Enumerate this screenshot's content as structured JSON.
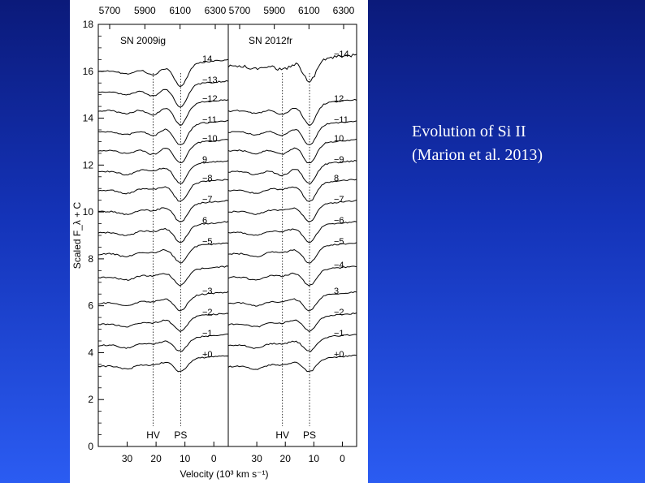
{
  "caption": {
    "line1": "Evolution of Si II",
    "line2": "(Marion et al. 2013)"
  },
  "colors": {
    "background_top": "#0b1a7a",
    "background_bottom": "#2b5cf2",
    "caption_text": "#ffffff",
    "figure_bg": "#ffffff",
    "ink": "#000000"
  },
  "chart_data": {
    "type": "line",
    "ylabel": "Scaled F_λ + C",
    "xlabel": "Velocity (10³ km s⁻¹)",
    "ylim": [
      0,
      18
    ],
    "yticks": [
      0,
      2,
      4,
      6,
      8,
      10,
      12,
      14,
      16,
      18
    ],
    "xlim": [
      40,
      -5
    ],
    "xticks": [
      30,
      20,
      10,
      0
    ],
    "wavelength_ticks": [
      5700,
      5900,
      6100,
      6300
    ],
    "vlines": [
      {
        "label": "HV",
        "velocity": 21
      },
      {
        "label": "PS",
        "velocity": 11.5
      }
    ],
    "panels": [
      {
        "name": "SN 2009ig",
        "epochs": [
          {
            "label": "14",
            "offset": 16.0
          },
          {
            "label": "−13",
            "offset": 15.1
          },
          {
            "label": "−12",
            "offset": 14.3
          },
          {
            "label": "−11",
            "offset": 13.4
          },
          {
            "label": "−10",
            "offset": 12.6
          },
          {
            "label": "9",
            "offset": 11.7
          },
          {
            "label": "−8",
            "offset": 10.9
          },
          {
            "label": "−7",
            "offset": 10.0
          },
          {
            "label": "6",
            "offset": 9.1
          },
          {
            "label": "−5",
            "offset": 8.2
          },
          {
            "label": "",
            "offset": 7.2
          },
          {
            "label": "−3",
            "offset": 6.1
          },
          {
            "label": "−2",
            "offset": 5.2
          },
          {
            "label": "−1",
            "offset": 4.3
          },
          {
            "label": "+0",
            "offset": 3.4
          }
        ]
      },
      {
        "name": "SN 2012fr",
        "epochs": [
          {
            "label": "−14",
            "offset": 16.2
          },
          {
            "label": "12",
            "offset": 14.3
          },
          {
            "label": "−11",
            "offset": 13.4
          },
          {
            "label": "10",
            "offset": 12.6
          },
          {
            "label": "−9",
            "offset": 11.7
          },
          {
            "label": "8",
            "offset": 10.9
          },
          {
            "label": "−7",
            "offset": 10.0
          },
          {
            "label": "−6",
            "offset": 9.1
          },
          {
            "label": "−5",
            "offset": 8.2
          },
          {
            "label": "−4",
            "offset": 7.2
          },
          {
            "label": "3",
            "offset": 6.1
          },
          {
            "label": "−2",
            "offset": 5.2
          },
          {
            "label": "−1",
            "offset": 4.3
          },
          {
            "label": "+0",
            "offset": 3.4
          }
        ]
      }
    ]
  }
}
